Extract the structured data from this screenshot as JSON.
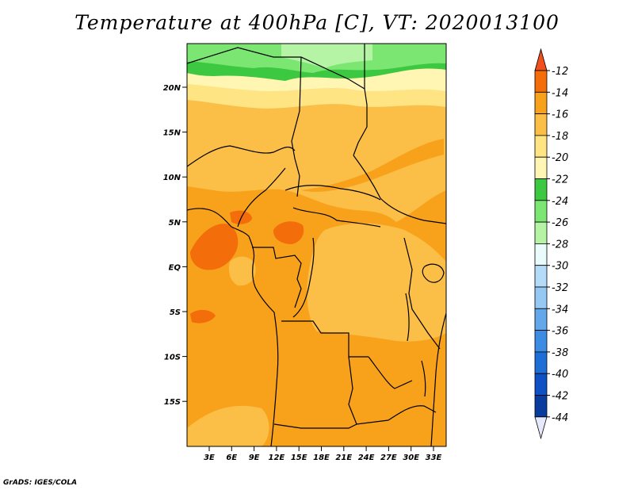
{
  "title": "Temperature at 400hPa [C], VT: 2020013100",
  "credit": "GrADS: IGES/COLA",
  "map": {
    "lat_labels": [
      "20N",
      "15N",
      "10N",
      "5N",
      "EQ",
      "5S",
      "10S",
      "15S"
    ],
    "lon_labels": [
      "3E",
      "6E",
      "9E",
      "12E",
      "15E",
      "18E",
      "21E",
      "24E",
      "27E",
      "30E",
      "33E"
    ],
    "field_colors": {
      "pale_green": "#b4f4a4",
      "light_green": "#7ce672",
      "green": "#3cc840",
      "pale_yellow": "#fff6b4",
      "yellow": "#ffe484",
      "light_orange": "#fbbf48",
      "orange": "#f8a21c",
      "dark_orange": "#f36d0a"
    }
  },
  "colorbar": {
    "labels": [
      "-12",
      "-14",
      "-16",
      "-18",
      "-20",
      "-22",
      "-24",
      "-26",
      "-28",
      "-30",
      "-32",
      "-34",
      "-36",
      "-38",
      "-40",
      "-42",
      "-44"
    ],
    "colors": [
      "#f36d0a",
      "#f8a21c",
      "#fbbf48",
      "#ffe484",
      "#fff6b4",
      "#3cc840",
      "#7ce672",
      "#b4f4a4",
      "#eafbfb",
      "#b4dcf8",
      "#96c8f4",
      "#64a8ec",
      "#3c8ce4",
      "#1e6ed8",
      "#0f50c4",
      "#0a3ca0",
      "#0a0a78"
    ],
    "top_arrow_color": "#f0501e",
    "bottom_arrow_color": "#e6e8fc"
  }
}
